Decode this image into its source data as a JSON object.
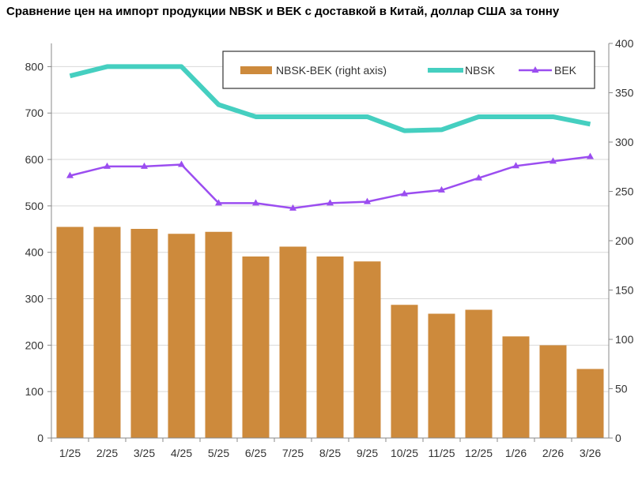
{
  "chart_data": {
    "type": "bar+line",
    "title": "Сравнение цен на импорт продукции NBSK и BEK с доставкой в Китай, доллар США за тонну",
    "categories": [
      "1/25",
      "2/25",
      "3/25",
      "4/25",
      "5/25",
      "6/25",
      "7/25",
      "8/25",
      "9/25",
      "10/25",
      "11/25",
      "12/25",
      "1/26",
      "2/26",
      "3/26"
    ],
    "series": [
      {
        "name": "NBSK-BEK (right axis)",
        "type": "bar",
        "axis": "right",
        "color": "#CD8A3C",
        "values": [
          214,
          214,
          212,
          207,
          209,
          184,
          194,
          184,
          179,
          135,
          126,
          130,
          103,
          94,
          70
        ]
      },
      {
        "name": "NBSK",
        "type": "line",
        "axis": "left",
        "color": "#45CFC0",
        "values": [
          780,
          800,
          800,
          800,
          718,
          692,
          692,
          692,
          692,
          662,
          664,
          692,
          692,
          692,
          676
        ]
      },
      {
        "name": "BEK",
        "type": "line",
        "axis": "left",
        "color": "#9B4DF0",
        "marker": "triangle",
        "values": [
          565,
          585,
          585,
          589,
          506,
          506,
          495,
          506,
          509,
          526,
          534,
          560,
          586,
          596,
          606
        ]
      }
    ],
    "left_axis": {
      "ylim": [
        0,
        850
      ],
      "ticks": [
        0,
        100,
        200,
        300,
        400,
        500,
        600,
        700,
        800
      ]
    },
    "right_axis": {
      "ylim": [
        0,
        400
      ],
      "ticks": [
        0,
        50,
        100,
        150,
        200,
        250,
        300,
        350,
        400
      ]
    },
    "grid": true,
    "legend": "top-right"
  }
}
